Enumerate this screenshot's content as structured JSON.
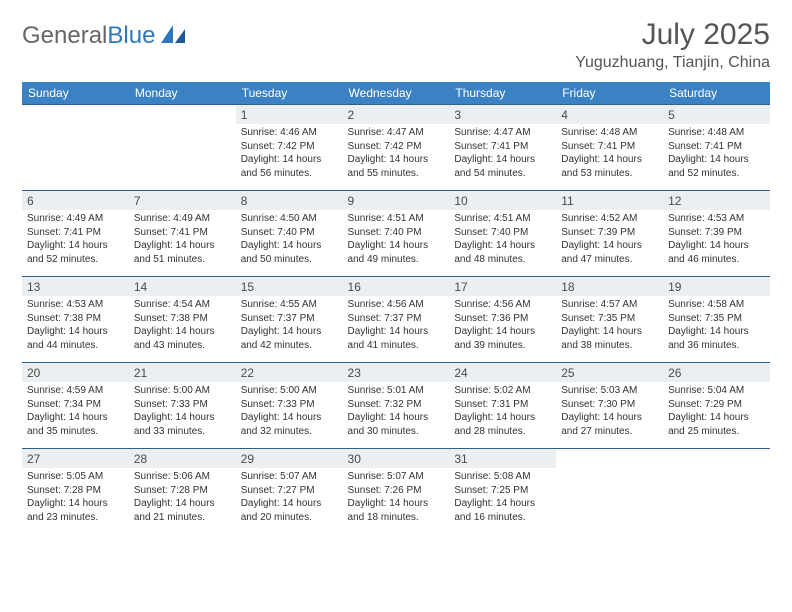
{
  "logo": {
    "general": "General",
    "blue": "Blue"
  },
  "title": "July 2025",
  "location": "Yuguzhuang, Tianjin, China",
  "header_color": "#3b82c4",
  "daynum_bg": "#eceff1",
  "border_color": "#2f5f8f",
  "weekdays": [
    "Sunday",
    "Monday",
    "Tuesday",
    "Wednesday",
    "Thursday",
    "Friday",
    "Saturday"
  ],
  "weeks": [
    [
      null,
      null,
      {
        "n": "1",
        "sr": "4:46 AM",
        "ss": "7:42 PM",
        "dl": "14 hours and 56 minutes."
      },
      {
        "n": "2",
        "sr": "4:47 AM",
        "ss": "7:42 PM",
        "dl": "14 hours and 55 minutes."
      },
      {
        "n": "3",
        "sr": "4:47 AM",
        "ss": "7:41 PM",
        "dl": "14 hours and 54 minutes."
      },
      {
        "n": "4",
        "sr": "4:48 AM",
        "ss": "7:41 PM",
        "dl": "14 hours and 53 minutes."
      },
      {
        "n": "5",
        "sr": "4:48 AM",
        "ss": "7:41 PM",
        "dl": "14 hours and 52 minutes."
      }
    ],
    [
      {
        "n": "6",
        "sr": "4:49 AM",
        "ss": "7:41 PM",
        "dl": "14 hours and 52 minutes."
      },
      {
        "n": "7",
        "sr": "4:49 AM",
        "ss": "7:41 PM",
        "dl": "14 hours and 51 minutes."
      },
      {
        "n": "8",
        "sr": "4:50 AM",
        "ss": "7:40 PM",
        "dl": "14 hours and 50 minutes."
      },
      {
        "n": "9",
        "sr": "4:51 AM",
        "ss": "7:40 PM",
        "dl": "14 hours and 49 minutes."
      },
      {
        "n": "10",
        "sr": "4:51 AM",
        "ss": "7:40 PM",
        "dl": "14 hours and 48 minutes."
      },
      {
        "n": "11",
        "sr": "4:52 AM",
        "ss": "7:39 PM",
        "dl": "14 hours and 47 minutes."
      },
      {
        "n": "12",
        "sr": "4:53 AM",
        "ss": "7:39 PM",
        "dl": "14 hours and 46 minutes."
      }
    ],
    [
      {
        "n": "13",
        "sr": "4:53 AM",
        "ss": "7:38 PM",
        "dl": "14 hours and 44 minutes."
      },
      {
        "n": "14",
        "sr": "4:54 AM",
        "ss": "7:38 PM",
        "dl": "14 hours and 43 minutes."
      },
      {
        "n": "15",
        "sr": "4:55 AM",
        "ss": "7:37 PM",
        "dl": "14 hours and 42 minutes."
      },
      {
        "n": "16",
        "sr": "4:56 AM",
        "ss": "7:37 PM",
        "dl": "14 hours and 41 minutes."
      },
      {
        "n": "17",
        "sr": "4:56 AM",
        "ss": "7:36 PM",
        "dl": "14 hours and 39 minutes."
      },
      {
        "n": "18",
        "sr": "4:57 AM",
        "ss": "7:35 PM",
        "dl": "14 hours and 38 minutes."
      },
      {
        "n": "19",
        "sr": "4:58 AM",
        "ss": "7:35 PM",
        "dl": "14 hours and 36 minutes."
      }
    ],
    [
      {
        "n": "20",
        "sr": "4:59 AM",
        "ss": "7:34 PM",
        "dl": "14 hours and 35 minutes."
      },
      {
        "n": "21",
        "sr": "5:00 AM",
        "ss": "7:33 PM",
        "dl": "14 hours and 33 minutes."
      },
      {
        "n": "22",
        "sr": "5:00 AM",
        "ss": "7:33 PM",
        "dl": "14 hours and 32 minutes."
      },
      {
        "n": "23",
        "sr": "5:01 AM",
        "ss": "7:32 PM",
        "dl": "14 hours and 30 minutes."
      },
      {
        "n": "24",
        "sr": "5:02 AM",
        "ss": "7:31 PM",
        "dl": "14 hours and 28 minutes."
      },
      {
        "n": "25",
        "sr": "5:03 AM",
        "ss": "7:30 PM",
        "dl": "14 hours and 27 minutes."
      },
      {
        "n": "26",
        "sr": "5:04 AM",
        "ss": "7:29 PM",
        "dl": "14 hours and 25 minutes."
      }
    ],
    [
      {
        "n": "27",
        "sr": "5:05 AM",
        "ss": "7:28 PM",
        "dl": "14 hours and 23 minutes."
      },
      {
        "n": "28",
        "sr": "5:06 AM",
        "ss": "7:28 PM",
        "dl": "14 hours and 21 minutes."
      },
      {
        "n": "29",
        "sr": "5:07 AM",
        "ss": "7:27 PM",
        "dl": "14 hours and 20 minutes."
      },
      {
        "n": "30",
        "sr": "5:07 AM",
        "ss": "7:26 PM",
        "dl": "14 hours and 18 minutes."
      },
      {
        "n": "31",
        "sr": "5:08 AM",
        "ss": "7:25 PM",
        "dl": "14 hours and 16 minutes."
      },
      null,
      null
    ]
  ],
  "labels": {
    "sunrise": "Sunrise: ",
    "sunset": "Sunset: ",
    "daylight": "Daylight: "
  }
}
